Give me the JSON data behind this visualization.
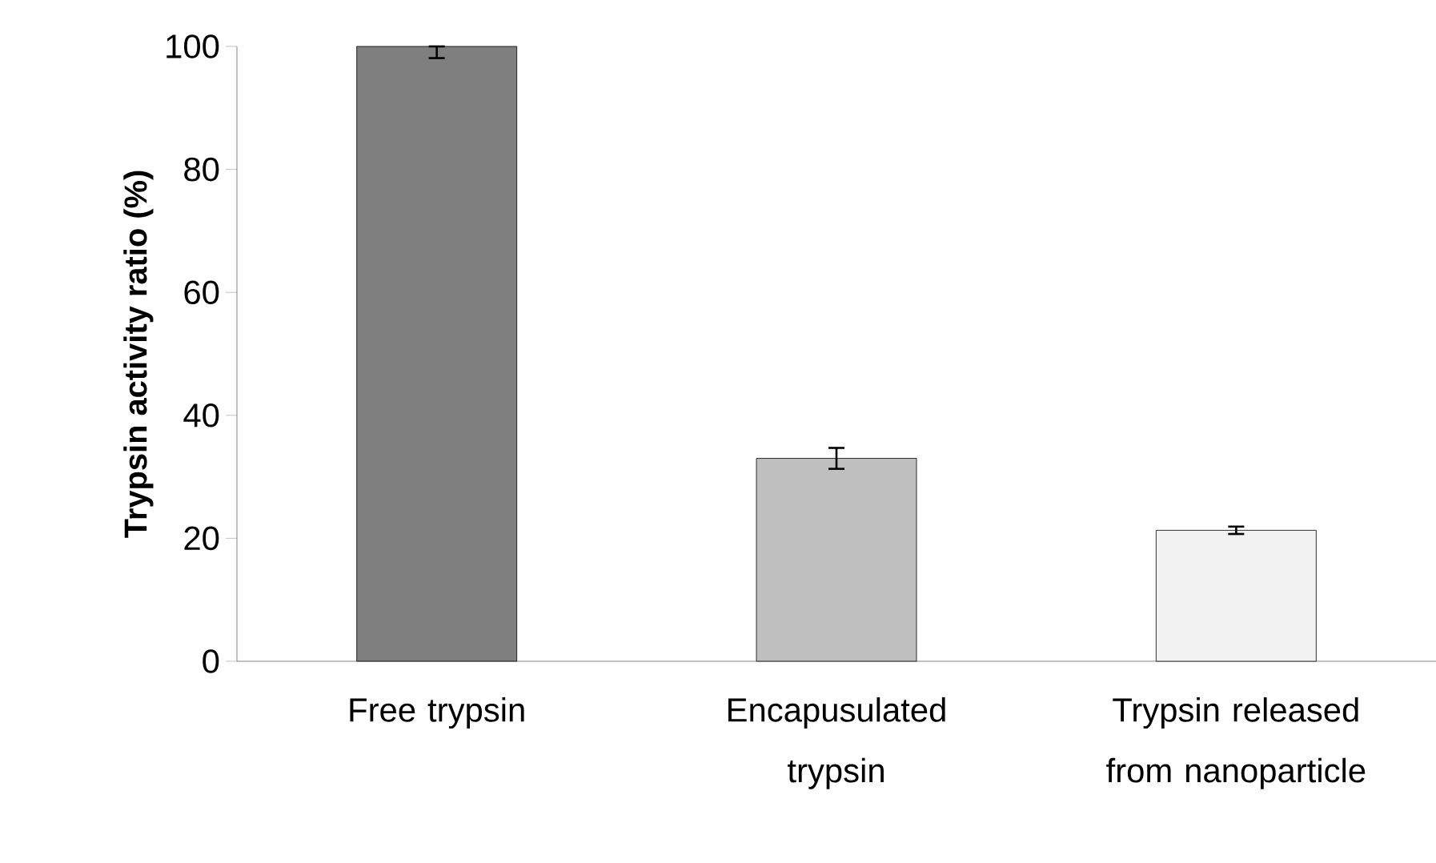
{
  "chart_data": {
    "type": "bar",
    "ylabel": "Trypsin activity ratio (%)",
    "categories": [
      "Free trypsin",
      "Encapusulated trypsin",
      "Trypsin released from nanoparticle"
    ],
    "values": [
      100,
      33.0,
      21.3
    ],
    "colors": [
      "#7f7f7f",
      "#bfbfbf",
      "#f2f2f2"
    ],
    "errors": [
      [
        98.1,
        100
      ],
      [
        31.3,
        34.7
      ],
      [
        20.7,
        21.9
      ]
    ],
    "ylim": [
      0,
      100
    ],
    "yticks": [
      0,
      20,
      40,
      60,
      80,
      100
    ],
    "grid": false
  }
}
